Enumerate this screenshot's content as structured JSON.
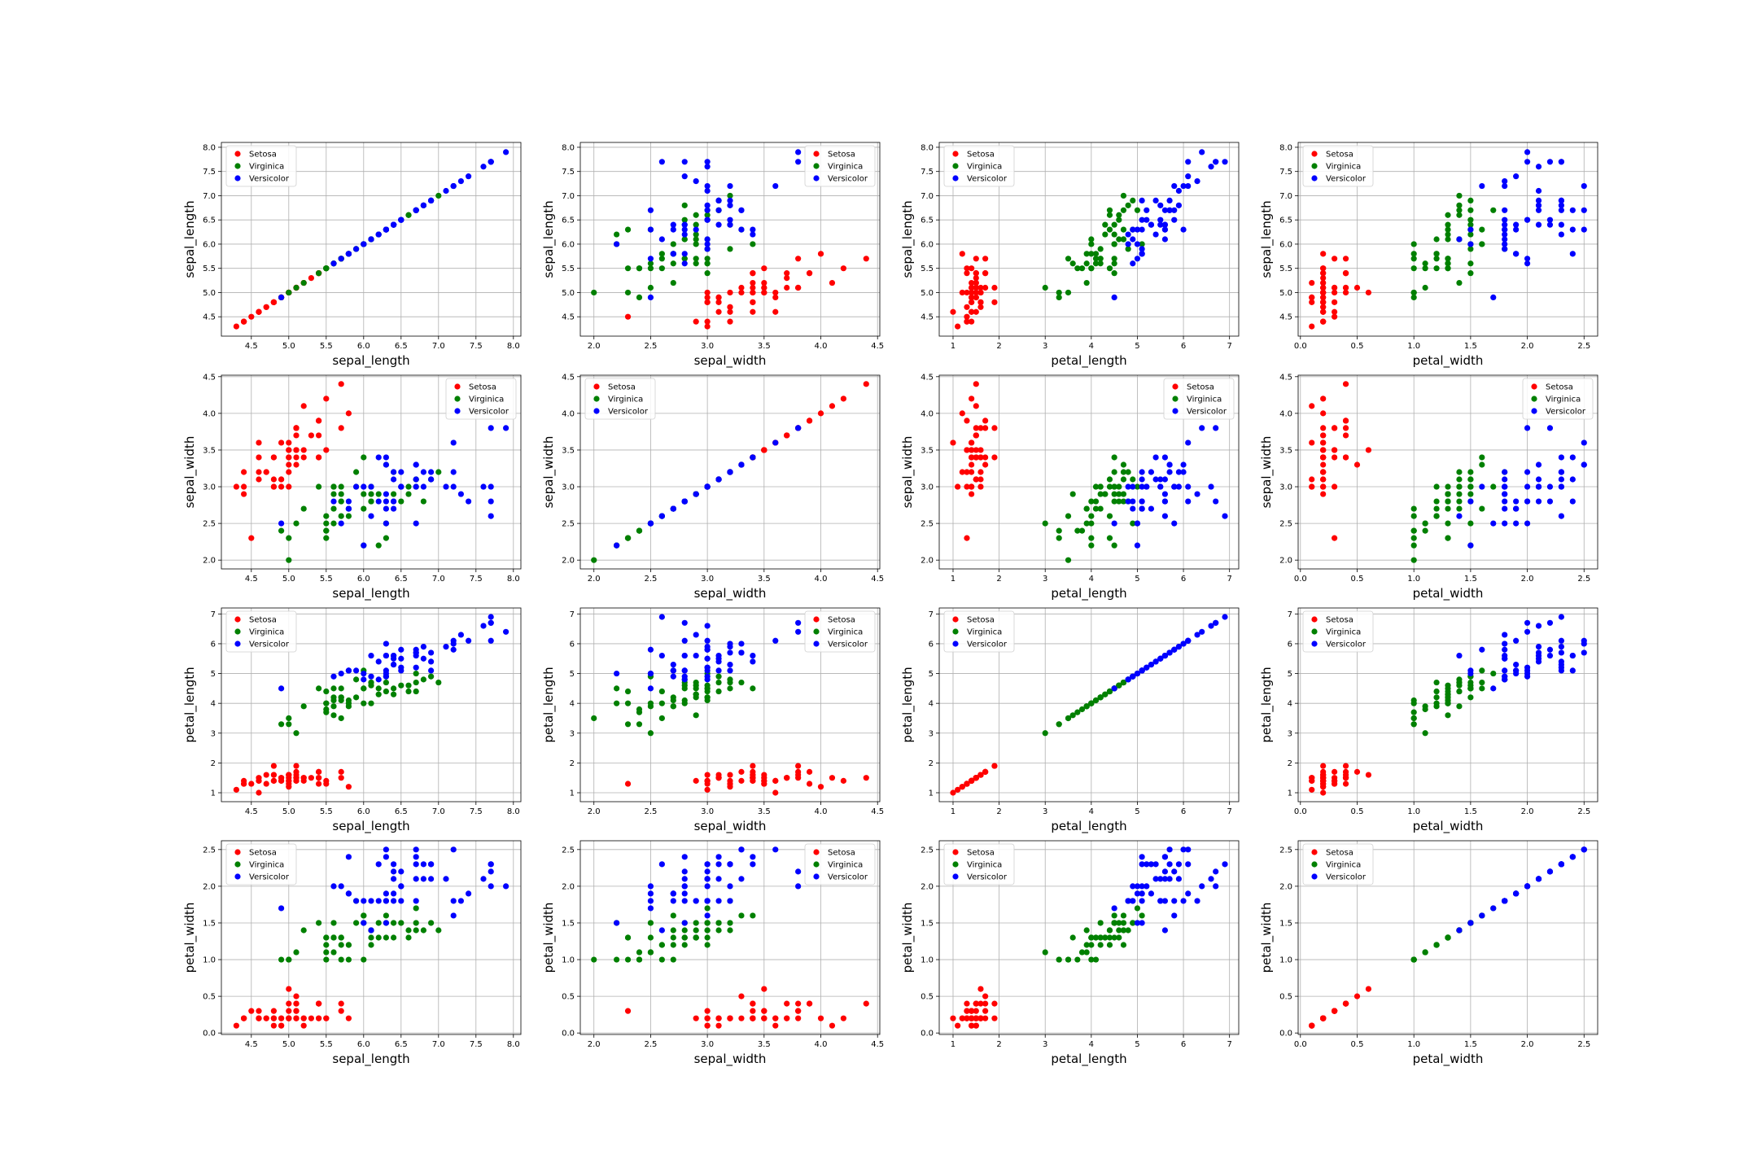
{
  "chart_data": {
    "type": "scatter",
    "grid": true,
    "legend_placement": {
      "default": "upper-left",
      "sepal_width_vs_sepal_length": "upper-right",
      "sepal_width_vs_petal_length": "upper-right",
      "sepal_width_vs_petal_width": "upper-right",
      "sepal_length_vs_sepal_width": "upper-right",
      "petal_length_vs_sepal_width": "upper-right",
      "petal_width_vs_sepal_width": "upper-right"
    },
    "colors": {
      "Setosa": "#ff0000",
      "Virginica": "#008000",
      "Versicolor": "#0000ff"
    },
    "legend": [
      "Setosa",
      "Virginica",
      "Versicolor"
    ],
    "features": [
      "sepal_length",
      "sepal_width",
      "petal_length",
      "petal_width"
    ],
    "ranges": {
      "sepal_length": {
        "lim": [
          4.1,
          8.1
        ],
        "ticks": [
          "4.5",
          "5.0",
          "5.5",
          "6.0",
          "6.5",
          "7.0",
          "7.5",
          "8.0"
        ]
      },
      "sepal_width": {
        "lim": [
          1.88,
          4.52
        ],
        "ticks": [
          "2.0",
          "2.5",
          "3.0",
          "3.5",
          "4.0",
          "4.5"
        ]
      },
      "petal_length": {
        "lim": [
          0.7,
          7.2
        ],
        "ticks": [
          "1",
          "2",
          "3",
          "4",
          "5",
          "6",
          "7"
        ]
      },
      "petal_width": {
        "lim": [
          -0.02,
          2.62
        ],
        "ticks": [
          "0.0",
          "0.5",
          "1.0",
          "1.5",
          "2.0",
          "2.5"
        ]
      }
    },
    "series": [
      {
        "name": "Setosa",
        "columns": [
          "sepal_length",
          "sepal_width",
          "petal_length",
          "petal_width"
        ],
        "points": [
          [
            5.1,
            3.5,
            1.4,
            0.2
          ],
          [
            4.9,
            3.0,
            1.4,
            0.2
          ],
          [
            4.7,
            3.2,
            1.3,
            0.2
          ],
          [
            4.6,
            3.1,
            1.5,
            0.2
          ],
          [
            5.0,
            3.6,
            1.4,
            0.2
          ],
          [
            5.4,
            3.9,
            1.7,
            0.4
          ],
          [
            4.6,
            3.4,
            1.4,
            0.3
          ],
          [
            5.0,
            3.4,
            1.5,
            0.2
          ],
          [
            4.4,
            2.9,
            1.4,
            0.2
          ],
          [
            4.9,
            3.1,
            1.5,
            0.1
          ],
          [
            5.4,
            3.7,
            1.5,
            0.2
          ],
          [
            4.8,
            3.4,
            1.6,
            0.2
          ],
          [
            4.8,
            3.0,
            1.4,
            0.1
          ],
          [
            4.3,
            3.0,
            1.1,
            0.1
          ],
          [
            5.8,
            4.0,
            1.2,
            0.2
          ],
          [
            5.7,
            4.4,
            1.5,
            0.4
          ],
          [
            5.4,
            3.9,
            1.3,
            0.4
          ],
          [
            5.1,
            3.5,
            1.4,
            0.3
          ],
          [
            5.7,
            3.8,
            1.7,
            0.3
          ],
          [
            5.1,
            3.8,
            1.5,
            0.3
          ],
          [
            5.4,
            3.4,
            1.7,
            0.2
          ],
          [
            5.1,
            3.7,
            1.5,
            0.4
          ],
          [
            4.6,
            3.6,
            1.0,
            0.2
          ],
          [
            5.1,
            3.3,
            1.7,
            0.5
          ],
          [
            4.8,
            3.4,
            1.9,
            0.2
          ],
          [
            5.0,
            3.0,
            1.6,
            0.2
          ],
          [
            5.0,
            3.4,
            1.6,
            0.4
          ],
          [
            5.2,
            3.5,
            1.5,
            0.2
          ],
          [
            5.2,
            3.4,
            1.4,
            0.2
          ],
          [
            4.7,
            3.2,
            1.6,
            0.2
          ],
          [
            4.8,
            3.1,
            1.6,
            0.2
          ],
          [
            5.4,
            3.4,
            1.5,
            0.4
          ],
          [
            5.2,
            4.1,
            1.5,
            0.1
          ],
          [
            5.5,
            4.2,
            1.4,
            0.2
          ],
          [
            4.9,
            3.1,
            1.5,
            0.2
          ],
          [
            5.0,
            3.2,
            1.2,
            0.2
          ],
          [
            5.5,
            3.5,
            1.3,
            0.2
          ],
          [
            4.9,
            3.6,
            1.4,
            0.1
          ],
          [
            4.4,
            3.0,
            1.3,
            0.2
          ],
          [
            5.1,
            3.4,
            1.5,
            0.2
          ],
          [
            5.0,
            3.5,
            1.3,
            0.3
          ],
          [
            4.5,
            2.3,
            1.3,
            0.3
          ],
          [
            4.4,
            3.2,
            1.3,
            0.2
          ],
          [
            5.0,
            3.5,
            1.6,
            0.6
          ],
          [
            5.1,
            3.8,
            1.9,
            0.4
          ],
          [
            4.8,
            3.0,
            1.4,
            0.3
          ],
          [
            5.1,
            3.8,
            1.6,
            0.2
          ],
          [
            4.6,
            3.2,
            1.4,
            0.2
          ],
          [
            5.3,
            3.7,
            1.5,
            0.2
          ],
          [
            5.0,
            3.3,
            1.4,
            0.2
          ]
        ]
      },
      {
        "name": "Virginica",
        "columns": [
          "sepal_length",
          "sepal_width",
          "petal_length",
          "petal_width"
        ],
        "points": [
          [
            7.0,
            3.2,
            4.7,
            1.4
          ],
          [
            6.4,
            3.2,
            4.5,
            1.5
          ],
          [
            6.9,
            3.1,
            4.9,
            1.5
          ],
          [
            5.5,
            2.3,
            4.0,
            1.3
          ],
          [
            6.5,
            2.8,
            4.6,
            1.5
          ],
          [
            5.7,
            2.8,
            4.5,
            1.3
          ],
          [
            6.3,
            3.3,
            4.7,
            1.6
          ],
          [
            4.9,
            2.4,
            3.3,
            1.0
          ],
          [
            6.6,
            2.9,
            4.6,
            1.3
          ],
          [
            5.2,
            2.7,
            3.9,
            1.4
          ],
          [
            5.0,
            2.0,
            3.5,
            1.0
          ],
          [
            5.9,
            3.0,
            4.2,
            1.5
          ],
          [
            6.0,
            2.2,
            4.0,
            1.0
          ],
          [
            6.1,
            2.9,
            4.7,
            1.4
          ],
          [
            5.6,
            2.9,
            3.6,
            1.3
          ],
          [
            6.7,
            3.1,
            4.4,
            1.4
          ],
          [
            5.6,
            3.0,
            4.5,
            1.5
          ],
          [
            5.8,
            2.7,
            4.1,
            1.0
          ],
          [
            6.2,
            2.2,
            4.5,
            1.5
          ],
          [
            5.6,
            2.5,
            3.9,
            1.1
          ],
          [
            5.9,
            3.2,
            4.8,
            1.8
          ],
          [
            6.1,
            2.8,
            4.0,
            1.3
          ],
          [
            6.3,
            2.5,
            4.9,
            1.5
          ],
          [
            6.1,
            2.8,
            4.7,
            1.2
          ],
          [
            6.4,
            2.9,
            4.3,
            1.3
          ],
          [
            6.6,
            3.0,
            4.4,
            1.4
          ],
          [
            6.8,
            2.8,
            4.8,
            1.4
          ],
          [
            6.7,
            3.0,
            5.0,
            1.7
          ],
          [
            6.0,
            2.9,
            4.5,
            1.5
          ],
          [
            5.7,
            2.6,
            3.5,
            1.0
          ],
          [
            5.5,
            2.4,
            3.8,
            1.1
          ],
          [
            5.5,
            2.4,
            3.7,
            1.0
          ],
          [
            5.8,
            2.7,
            3.9,
            1.2
          ],
          [
            6.0,
            2.7,
            5.1,
            1.6
          ],
          [
            5.4,
            3.0,
            4.5,
            1.5
          ],
          [
            6.0,
            3.4,
            4.5,
            1.6
          ],
          [
            6.7,
            3.1,
            4.7,
            1.5
          ],
          [
            6.3,
            2.3,
            4.4,
            1.3
          ],
          [
            5.6,
            3.0,
            4.1,
            1.3
          ],
          [
            5.5,
            2.5,
            4.0,
            1.3
          ],
          [
            5.5,
            2.6,
            4.4,
            1.2
          ],
          [
            6.1,
            3.0,
            4.6,
            1.4
          ],
          [
            5.8,
            2.6,
            4.0,
            1.2
          ],
          [
            5.0,
            2.3,
            3.3,
            1.0
          ],
          [
            5.6,
            2.7,
            4.2,
            1.3
          ],
          [
            5.7,
            3.0,
            4.2,
            1.2
          ],
          [
            5.7,
            2.9,
            4.2,
            1.3
          ],
          [
            6.2,
            2.9,
            4.3,
            1.3
          ],
          [
            5.1,
            2.5,
            3.0,
            1.1
          ],
          [
            5.7,
            2.8,
            4.1,
            1.3
          ]
        ]
      },
      {
        "name": "Versicolor",
        "columns": [
          "sepal_length",
          "sepal_width",
          "petal_length",
          "petal_width"
        ],
        "points": [
          [
            6.3,
            3.3,
            6.0,
            2.5
          ],
          [
            5.8,
            2.7,
            5.1,
            1.9
          ],
          [
            7.1,
            3.0,
            5.9,
            2.1
          ],
          [
            6.3,
            2.9,
            5.6,
            1.8
          ],
          [
            6.5,
            3.0,
            5.8,
            2.2
          ],
          [
            7.6,
            3.0,
            6.6,
            2.1
          ],
          [
            4.9,
            2.5,
            4.5,
            1.7
          ],
          [
            7.3,
            2.9,
            6.3,
            1.8
          ],
          [
            6.7,
            2.5,
            5.8,
            1.8
          ],
          [
            7.2,
            3.6,
            6.1,
            2.5
          ],
          [
            6.5,
            3.2,
            5.1,
            2.0
          ],
          [
            6.4,
            2.7,
            5.3,
            1.9
          ],
          [
            6.8,
            3.0,
            5.5,
            2.1
          ],
          [
            5.7,
            2.5,
            5.0,
            2.0
          ],
          [
            5.8,
            2.8,
            5.1,
            2.4
          ],
          [
            6.4,
            3.2,
            5.3,
            2.3
          ],
          [
            6.5,
            3.0,
            5.5,
            1.8
          ],
          [
            7.7,
            3.8,
            6.7,
            2.2
          ],
          [
            7.7,
            2.6,
            6.9,
            2.3
          ],
          [
            6.0,
            2.2,
            5.0,
            1.5
          ],
          [
            6.9,
            3.2,
            5.7,
            2.3
          ],
          [
            5.6,
            2.8,
            4.9,
            2.0
          ],
          [
            7.7,
            2.8,
            6.7,
            2.0
          ],
          [
            6.3,
            2.7,
            4.9,
            1.8
          ],
          [
            6.7,
            3.3,
            5.7,
            2.1
          ],
          [
            7.2,
            3.2,
            6.0,
            1.8
          ],
          [
            6.2,
            2.8,
            4.8,
            1.8
          ],
          [
            6.1,
            3.0,
            4.9,
            1.8
          ],
          [
            6.4,
            2.8,
            5.6,
            2.1
          ],
          [
            7.2,
            3.0,
            5.8,
            1.6
          ],
          [
            7.4,
            2.8,
            6.1,
            1.9
          ],
          [
            7.9,
            3.8,
            6.4,
            2.0
          ],
          [
            6.4,
            2.8,
            5.6,
            2.2
          ],
          [
            6.3,
            2.8,
            5.1,
            1.5
          ],
          [
            6.1,
            2.6,
            5.6,
            1.4
          ],
          [
            7.7,
            3.0,
            6.1,
            2.3
          ],
          [
            6.3,
            3.4,
            5.6,
            2.4
          ],
          [
            6.4,
            3.1,
            5.5,
            1.8
          ],
          [
            6.0,
            3.0,
            4.8,
            1.8
          ],
          [
            6.9,
            3.1,
            5.4,
            2.1
          ],
          [
            6.7,
            3.1,
            5.6,
            2.4
          ],
          [
            6.9,
            3.1,
            5.1,
            2.3
          ],
          [
            5.8,
            2.7,
            5.1,
            1.9
          ],
          [
            6.8,
            3.2,
            5.9,
            2.3
          ],
          [
            6.7,
            3.3,
            5.7,
            2.5
          ],
          [
            6.7,
            3.0,
            5.2,
            2.3
          ],
          [
            6.3,
            2.5,
            5.0,
            1.9
          ],
          [
            6.5,
            3.0,
            5.2,
            2.0
          ],
          [
            6.2,
            3.4,
            5.4,
            2.3
          ],
          [
            5.9,
            3.0,
            5.1,
            1.8
          ]
        ]
      }
    ]
  }
}
